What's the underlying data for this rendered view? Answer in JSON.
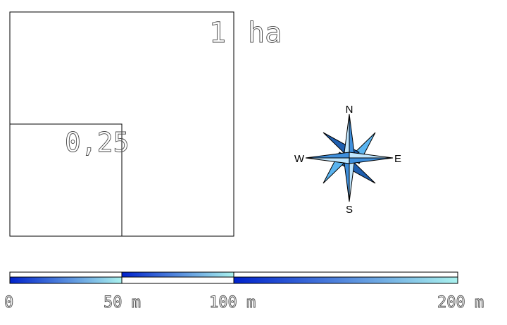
{
  "plot": {
    "big_label": "1",
    "unit_label": "ha",
    "small_label": "0,25"
  },
  "compass": {
    "north": "N",
    "east": "E",
    "south": "S",
    "west": "W",
    "colors": {
      "light": "#bfe6ff",
      "mid": "#5ab4f0",
      "dark": "#1f5fb0",
      "outline": "#000000"
    }
  },
  "scale_bar": {
    "labels": [
      "0",
      "50 m",
      "100 m",
      "200 m"
    ],
    "colors": {
      "dark": "#0022cc",
      "light": "#aaf2ee"
    }
  }
}
